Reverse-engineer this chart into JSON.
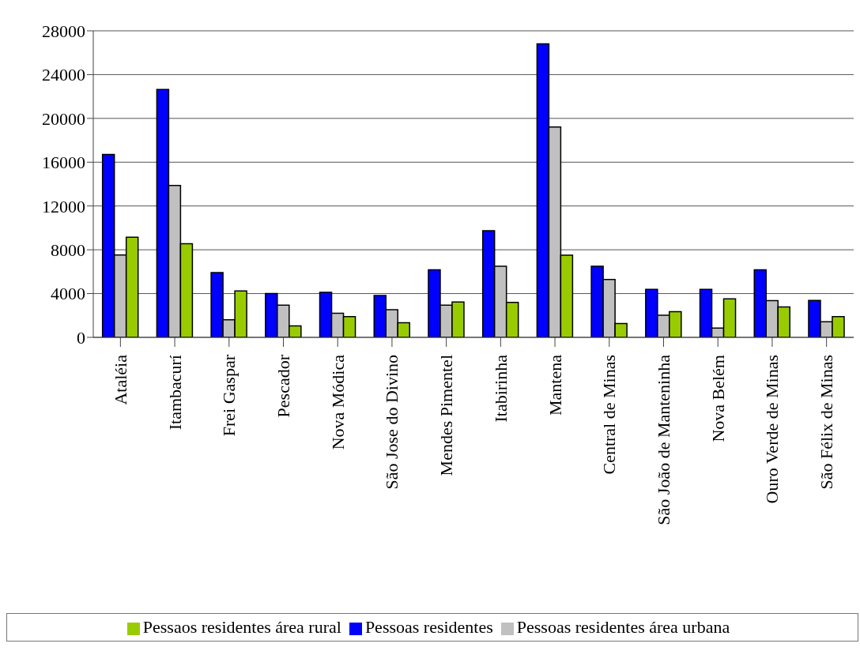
{
  "chart_data": {
    "type": "bar",
    "categories": [
      "Ataléia",
      "Itambacurí",
      "Frei Gaspar",
      "Pescador",
      "Nova Módica",
      "São Jose do Divino",
      "Mendes Pimentel",
      "Itabirinha",
      "Mantena",
      "Central de Minas",
      "São João de Manteninha",
      "Nova Belém",
      "Ouro Verde de Minas",
      "São Félix de Minas"
    ],
    "series": [
      {
        "name": "Pessoas residentes",
        "color": "#0000ff",
        "values": [
          16700,
          22640,
          5920,
          4000,
          4120,
          3820,
          6170,
          9740,
          26810,
          6490,
          4390,
          4390,
          6170,
          3370
        ]
      },
      {
        "name": "Pessoas residentes área urbana",
        "color": "#c0c0c0",
        "values": [
          7520,
          13880,
          1600,
          2940,
          2200,
          2520,
          2940,
          6490,
          19220,
          5290,
          2020,
          850,
          3350,
          1420
        ]
      },
      {
        "name": "Pessaos residentes área rural",
        "color": "#99cc00",
        "values": [
          9150,
          8560,
          4240,
          1040,
          1900,
          1330,
          3230,
          3200,
          7510,
          1270,
          2350,
          3520,
          2770,
          1900
        ]
      }
    ],
    "ylim": [
      0,
      28000
    ],
    "yticks": [
      0,
      4000,
      8000,
      12000,
      16000,
      20000,
      24000,
      28000
    ],
    "grid": "y",
    "legend": "bottom"
  }
}
